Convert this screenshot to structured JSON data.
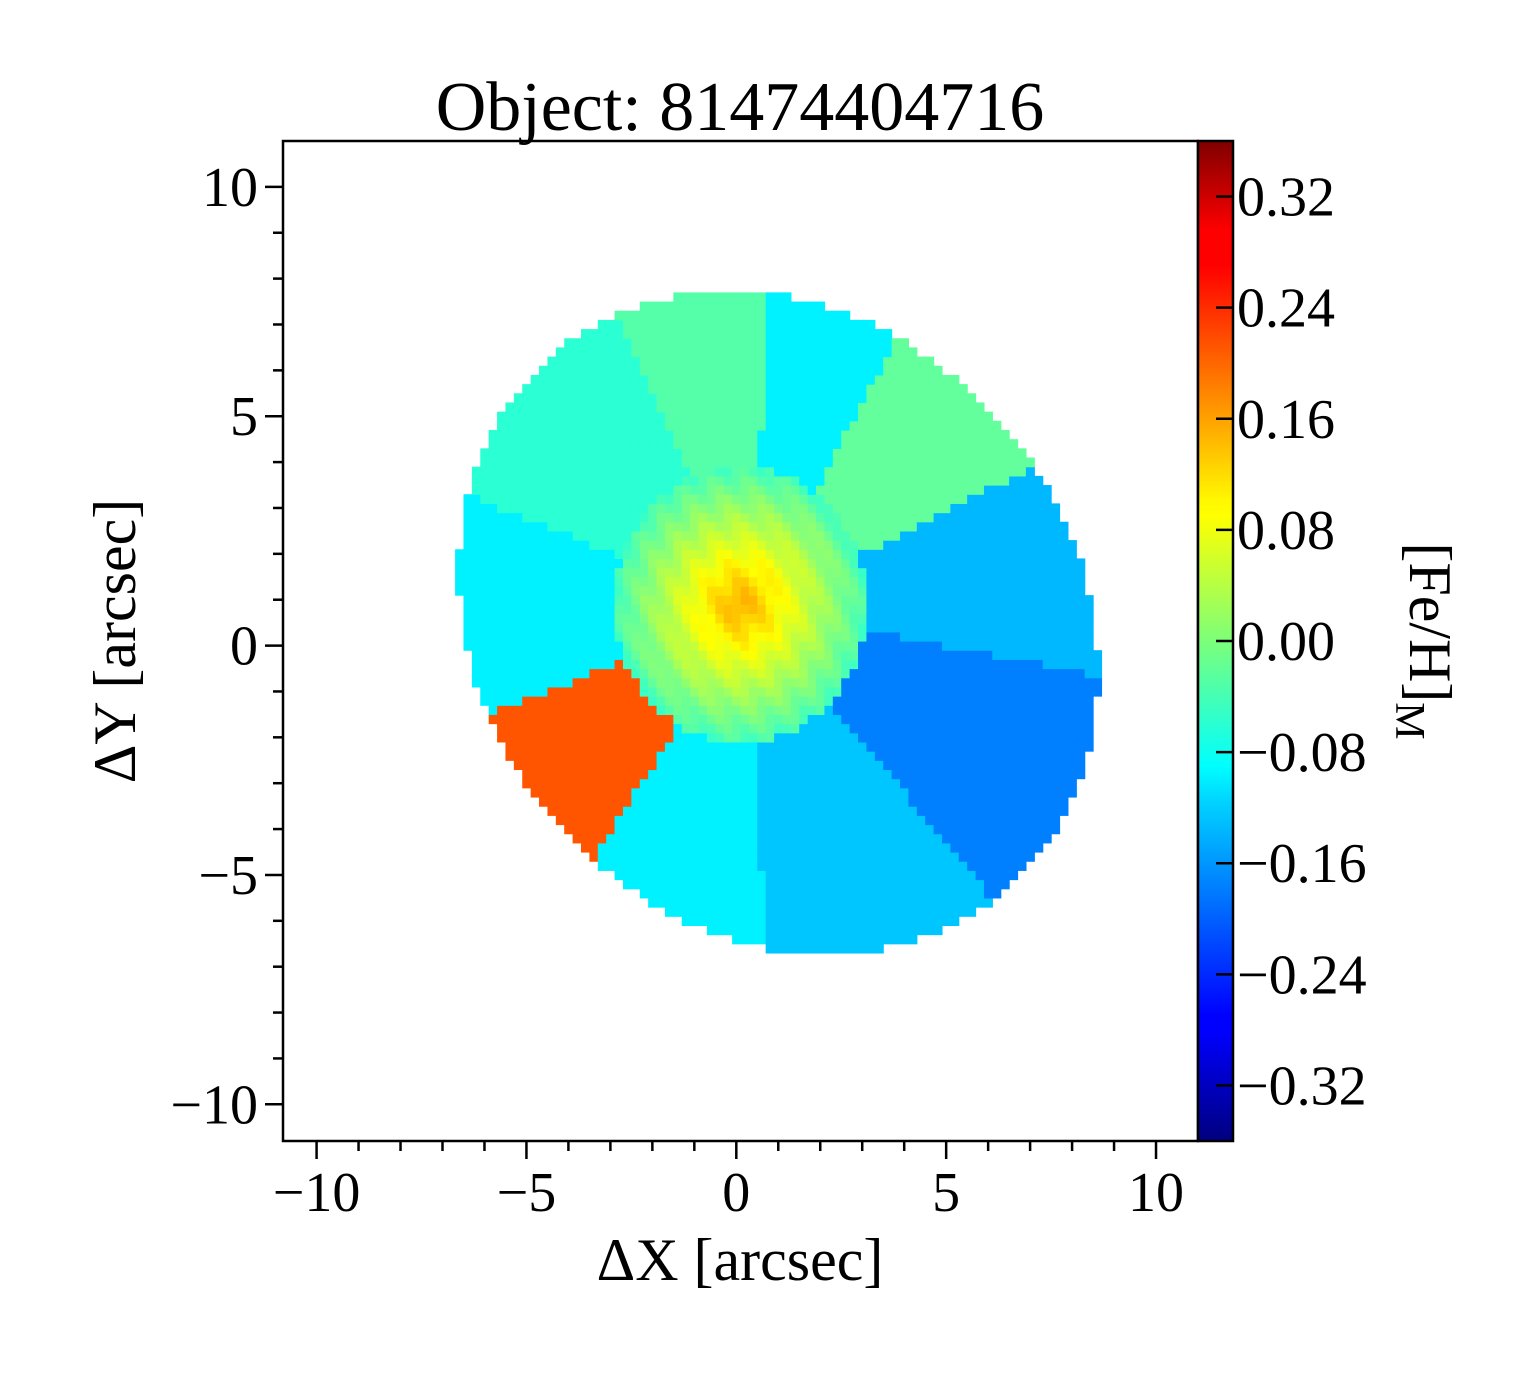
{
  "chart_data": {
    "type": "heatmap",
    "title": "Object: 81474404716",
    "xlabel": "ΔX [arcsec]",
    "ylabel": "ΔY [arcsec]",
    "xlim": [
      -10.8,
      11.0
    ],
    "ylim": [
      -10.8,
      11.0
    ],
    "xticks": [
      {
        "value": -10,
        "label": "−10"
      },
      {
        "value": -5,
        "label": "−5"
      },
      {
        "value": 0,
        "label": "0"
      },
      {
        "value": 5,
        "label": "5"
      },
      {
        "value": 10,
        "label": "10"
      }
    ],
    "yticks": [
      {
        "value": 10,
        "label": "10"
      },
      {
        "value": 5,
        "label": "5"
      },
      {
        "value": 0,
        "label": "0"
      },
      {
        "value": -5,
        "label": "−5"
      },
      {
        "value": -10,
        "label": "−10"
      }
    ],
    "colorbar": {
      "label": "[Fe/H]",
      "label_subscript": "M",
      "colormap": "jet",
      "vmin": -0.36,
      "vmax": 0.36,
      "ticks": [
        {
          "value": 0.32,
          "label": "0.32"
        },
        {
          "value": 0.24,
          "label": "0.24"
        },
        {
          "value": 0.16,
          "label": "0.16"
        },
        {
          "value": 0.08,
          "label": "0.08"
        },
        {
          "value": 0.0,
          "label": "0.00"
        },
        {
          "value": -0.08,
          "label": "−0.08"
        },
        {
          "value": -0.16,
          "label": "−0.16"
        },
        {
          "value": -0.24,
          "label": "−0.24"
        },
        {
          "value": -0.32,
          "label": "−0.32"
        }
      ]
    },
    "ellipse": {
      "center": [
        1.0,
        0.5
      ],
      "semi_major": 8.0,
      "semi_minor": 6.8,
      "angle_deg": -35
    },
    "center_region": {
      "center": [
        0.1,
        0.9
      ],
      "radius": 3.0
    },
    "core_value": 0.15,
    "bins": [
      {
        "name": "upper-left",
        "angle_range": [
          117,
          160
        ],
        "value": -0.06
      },
      {
        "name": "upper",
        "angle_range": [
          87,
          117
        ],
        "value": -0.03
      },
      {
        "name": "upper-right-blue",
        "angle_range": [
          60,
          87
        ],
        "value": -0.1
      },
      {
        "name": "right-green",
        "angle_range": [
          25,
          60
        ],
        "value": -0.02
      },
      {
        "name": "right-blue",
        "angle_range": [
          -10,
          25
        ],
        "value": -0.14
      },
      {
        "name": "lower-right",
        "angle_range": [
          -48,
          -10
        ],
        "value": -0.18
      },
      {
        "name": "bottom-right",
        "angle_range": [
          -88,
          -48
        ],
        "value": -0.13
      },
      {
        "name": "bottom",
        "angle_range": [
          -125,
          -88
        ],
        "value": -0.1
      },
      {
        "name": "lower-left-orange",
        "angle_range": [
          -160,
          -125
        ],
        "value": 0.21
      },
      {
        "name": "left",
        "angle_range": [
          -200,
          -160
        ],
        "value": -0.1
      }
    ]
  }
}
